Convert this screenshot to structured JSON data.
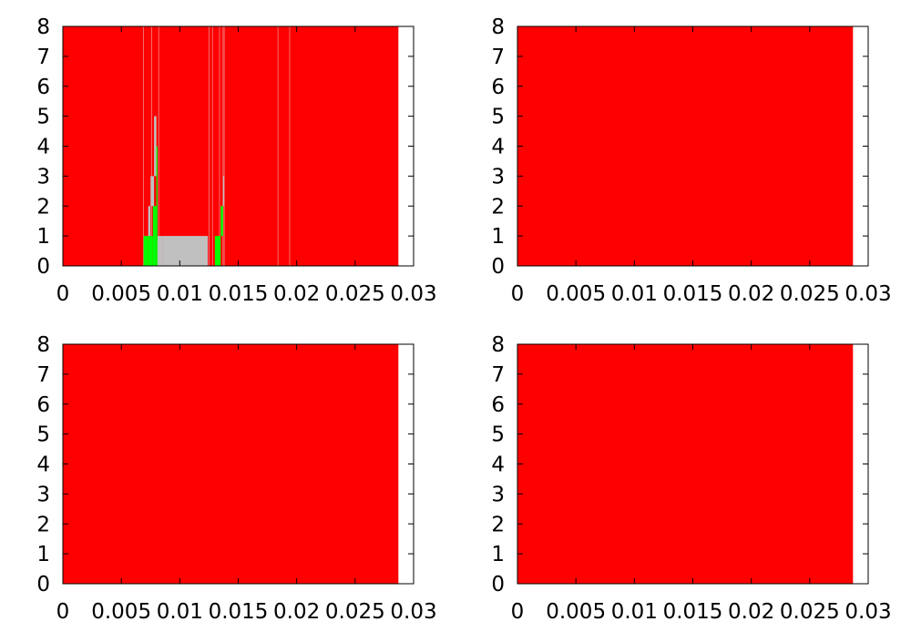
{
  "colors": {
    "red": "#ff0000",
    "green": "#00ff00",
    "gray": "#c0c0c0",
    "frame": "#000000",
    "background": "#ffffff"
  },
  "chart_data": [
    {
      "type": "bar",
      "subtype": "stacked-area-steps",
      "grid": false,
      "xlim": [
        0,
        0.03
      ],
      "ylim": [
        0,
        8
      ],
      "x_ticks": [
        "0",
        "0.005",
        "0.01",
        "0.015",
        "0.02",
        "0.025",
        "0.03"
      ],
      "y_ticks": [
        "0",
        "1",
        "2",
        "3",
        "4",
        "5",
        "6",
        "7",
        "8"
      ],
      "data_extent_x": [
        0,
        0.0287
      ],
      "background_fill": "red",
      "regions": [
        {
          "x0": 0.0069,
          "x1": 0.0073,
          "y0": 0,
          "y1": 1,
          "color": "green"
        },
        {
          "x0": 0.0073,
          "x1": 0.0075,
          "y0": 1,
          "y1": 2,
          "color": "gray"
        },
        {
          "x0": 0.0073,
          "x1": 0.0077,
          "y0": 0,
          "y1": 1,
          "color": "green"
        },
        {
          "x0": 0.0075,
          "x1": 0.0078,
          "y0": 2,
          "y1": 3,
          "color": "gray"
        },
        {
          "x0": 0.0077,
          "x1": 0.008,
          "y0": 0,
          "y1": 2,
          "color": "green"
        },
        {
          "x0": 0.0078,
          "x1": 0.008,
          "y0": 3,
          "y1": 5,
          "color": "gray"
        },
        {
          "x0": 0.008,
          "x1": 0.0081,
          "y0": 0,
          "y1": 4,
          "color": "green"
        },
        {
          "x0": 0.0081,
          "x1": 0.0085,
          "y0": 0,
          "y1": 1,
          "color": "gray"
        },
        {
          "x0": 0.0085,
          "x1": 0.0124,
          "y0": 0,
          "y1": 1,
          "color": "gray"
        },
        {
          "x0": 0.013,
          "x1": 0.0135,
          "y0": 0,
          "y1": 1,
          "color": "green"
        },
        {
          "x0": 0.0135,
          "x1": 0.0137,
          "y0": 1,
          "y1": 2,
          "color": "green"
        },
        {
          "x0": 0.0137,
          "x1": 0.0138,
          "y0": 2,
          "y1": 3,
          "color": "gray"
        }
      ],
      "vlines": [
        0.0069,
        0.0076,
        0.0082,
        0.0125,
        0.0128,
        0.0134,
        0.0137,
        0.0138,
        0.0184,
        0.0194
      ]
    },
    {
      "type": "bar",
      "subtype": "stacked-area-steps",
      "grid": false,
      "xlim": [
        0,
        0.03
      ],
      "ylim": [
        0,
        8
      ],
      "x_ticks": [
        "0",
        "0.005",
        "0.01",
        "0.015",
        "0.02",
        "0.025",
        "0.03"
      ],
      "y_ticks": [
        "0",
        "1",
        "2",
        "3",
        "4",
        "5",
        "6",
        "7",
        "8"
      ],
      "data_extent_x": [
        0,
        0.0287
      ],
      "background_fill": "red",
      "regions": [],
      "vlines": []
    },
    {
      "type": "bar",
      "subtype": "stacked-area-steps",
      "grid": false,
      "xlim": [
        0,
        0.03
      ],
      "ylim": [
        0,
        8
      ],
      "x_ticks": [
        "0",
        "0.005",
        "0.01",
        "0.015",
        "0.02",
        "0.025",
        "0.03"
      ],
      "y_ticks": [
        "0",
        "1",
        "2",
        "3",
        "4",
        "5",
        "6",
        "7",
        "8"
      ],
      "data_extent_x": [
        0,
        0.0287
      ],
      "background_fill": "red",
      "regions": [],
      "vlines": []
    },
    {
      "type": "bar",
      "subtype": "stacked-area-steps",
      "grid": false,
      "xlim": [
        0,
        0.03
      ],
      "ylim": [
        0,
        8
      ],
      "x_ticks": [
        "0",
        "0.005",
        "0.01",
        "0.015",
        "0.02",
        "0.025",
        "0.03"
      ],
      "y_ticks": [
        "0",
        "1",
        "2",
        "3",
        "4",
        "5",
        "6",
        "7",
        "8"
      ],
      "data_extent_x": [
        0,
        0.0287
      ],
      "background_fill": "red",
      "regions": [],
      "vlines": []
    }
  ]
}
